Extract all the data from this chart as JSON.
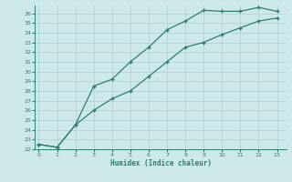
{
  "xlabel": "Humidex (Indice chaleur)",
  "x": [
    0,
    1,
    2,
    3,
    4,
    5,
    6,
    7,
    8,
    9,
    10,
    11,
    12,
    13
  ],
  "curve1_y": [
    22.5,
    22.2,
    24.5,
    28.5,
    29.2,
    31.0,
    32.5,
    34.3,
    35.2,
    36.3,
    36.2,
    36.2,
    36.6,
    36.2
  ],
  "curve2_y": [
    22.5,
    22.2,
    24.5,
    26.0,
    27.2,
    28.0,
    29.5,
    31.0,
    32.5,
    33.0,
    33.8,
    34.5,
    35.2,
    35.5
  ],
  "ylim": [
    22,
    36.8
  ],
  "xlim": [
    -0.2,
    13.5
  ],
  "yticks": [
    22,
    23,
    24,
    25,
    26,
    27,
    28,
    29,
    30,
    31,
    32,
    33,
    34,
    35,
    36
  ],
  "xticks": [
    0,
    1,
    2,
    3,
    4,
    5,
    6,
    7,
    8,
    9,
    10,
    11,
    12,
    13
  ],
  "line_color": "#2d7f6e",
  "bg_color": "#cce8e8",
  "grid_color": "#aad0d0",
  "marker": "+"
}
